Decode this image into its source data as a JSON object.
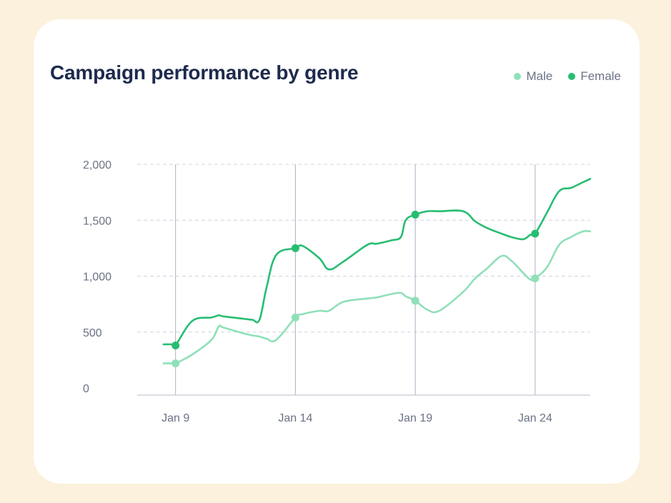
{
  "chart_data": {
    "type": "line",
    "title": "Campaign performance by genre",
    "xlabel": "",
    "ylabel": "",
    "x": [
      8.5,
      8.9,
      9,
      9.7,
      10.5,
      10.8,
      11,
      11.8,
      12.2,
      12.5,
      12.8,
      13.2,
      14,
      14.3,
      15,
      15.4,
      16,
      17,
      17.4,
      18,
      18.4,
      18.6,
      19,
      19.5,
      20,
      21,
      21.5,
      22,
      22.6,
      23,
      23.5,
      23.8,
      24,
      24.5,
      25,
      25.5,
      26,
      26.3
    ],
    "series": [
      {
        "name": "Male",
        "color": "#8fe0b8",
        "values": [
          220,
          220,
          220,
          300,
          430,
          550,
          540,
          490,
          470,
          460,
          440,
          430,
          630,
          660,
          690,
          690,
          770,
          800,
          810,
          840,
          850,
          820,
          780,
          700,
          690,
          860,
          980,
          1070,
          1180,
          1140,
          1030,
          970,
          980,
          1080,
          1280,
          1350,
          1400,
          1400
        ],
        "markers": [
          {
            "x": 9,
            "y": 220
          },
          {
            "x": 14,
            "y": 630
          },
          {
            "x": 19,
            "y": 780
          },
          {
            "x": 24,
            "y": 980
          }
        ]
      },
      {
        "name": "Female",
        "color": "#27bd72",
        "values": [
          390,
          390,
          380,
          600,
          630,
          650,
          640,
          620,
          610,
          610,
          900,
          1190,
          1250,
          1270,
          1160,
          1060,
          1130,
          1280,
          1290,
          1320,
          1350,
          1500,
          1550,
          1580,
          1580,
          1580,
          1490,
          1430,
          1380,
          1350,
          1330,
          1370,
          1380,
          1570,
          1760,
          1790,
          1840,
          1870
        ],
        "markers": [
          {
            "x": 9,
            "y": 380
          },
          {
            "x": 14,
            "y": 1250
          },
          {
            "x": 19,
            "y": 1550
          },
          {
            "x": 24,
            "y": 1380
          }
        ]
      }
    ],
    "xticks": [
      {
        "value": 9,
        "label": "Jan 9"
      },
      {
        "value": 14,
        "label": "Jan 14"
      },
      {
        "value": 19,
        "label": "Jan 19"
      },
      {
        "value": 24,
        "label": "Jan 24"
      }
    ],
    "yticks": [
      {
        "value": 0,
        "label": "0"
      },
      {
        "value": 500,
        "label": "500"
      },
      {
        "value": 1000,
        "label": "1,000"
      },
      {
        "value": 1500,
        "label": "1,500"
      },
      {
        "value": 2000,
        "label": "2,000"
      }
    ],
    "xlim": [
      7.4,
      26.3
    ],
    "ylim": [
      0,
      2000
    ],
    "grid": true,
    "legend": "top-right"
  }
}
